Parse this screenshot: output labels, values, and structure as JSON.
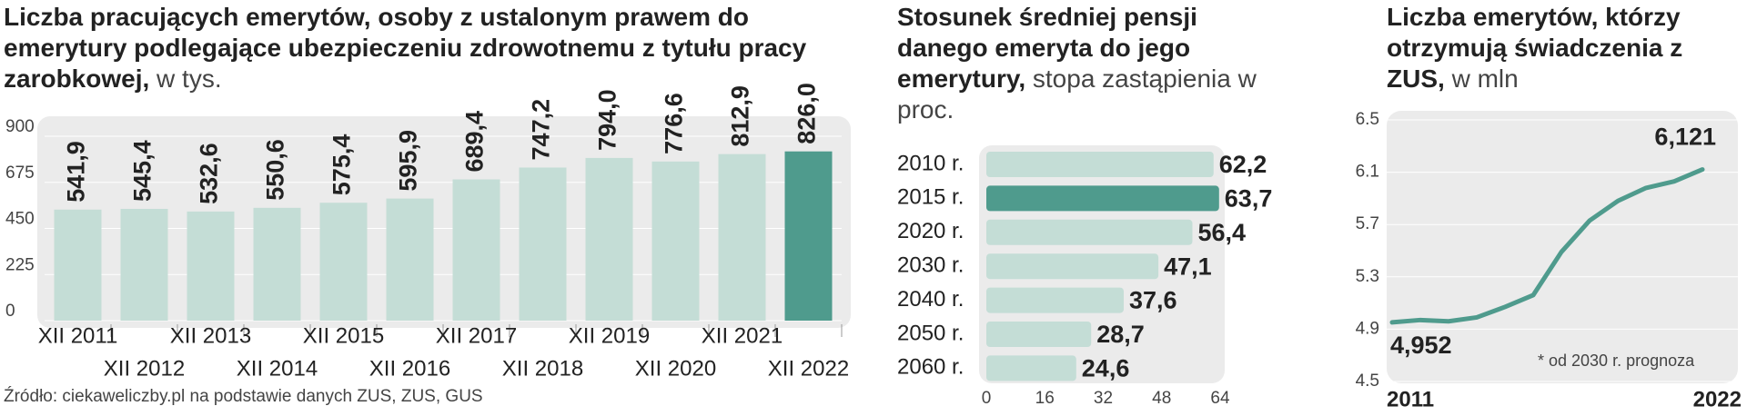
{
  "chart_data": [
    {
      "type": "bar",
      "title": "Liczba pracujących emerytów, osoby z ustalonym prawem do emerytury podlegające ubezpieczeniu zdrowotnemu z tytułu pracy zarobkowej,",
      "unit": "w tys.",
      "categories": [
        "XII 2011",
        "XII 2012",
        "XII 2013",
        "XII 2014",
        "XII 2015",
        "XII 2016",
        "XII 2017",
        "XII 2018",
        "XII 2019",
        "XII 2020",
        "XII 2021",
        "XII 2022"
      ],
      "values": [
        541.9,
        545.4,
        532.6,
        550.6,
        575.4,
        595.9,
        689.4,
        747.2,
        794.0,
        776.6,
        812.9,
        826.0
      ],
      "value_labels": [
        "541,9",
        "545,4",
        "532,6",
        "550,6",
        "575,4",
        "595,9",
        "689,4",
        "747,2",
        "794,0",
        "776,6",
        "812,9",
        "826,0"
      ],
      "colors": [
        "#c4ddd6",
        "#c4ddd6",
        "#c4ddd6",
        "#c4ddd6",
        "#c4ddd6",
        "#c4ddd6",
        "#c4ddd6",
        "#c4ddd6",
        "#c4ddd6",
        "#c4ddd6",
        "#c4ddd6",
        "#4f9b8d"
      ],
      "ylim": [
        0,
        900
      ],
      "yticks": [
        0,
        225,
        450,
        675,
        900
      ],
      "source": "Źródło: ciekaweliczby.pl na podstawie danych ZUS, ZUS, GUS"
    },
    {
      "type": "hbar",
      "title": "Stosunek średniej pensji danego emeryta do jego emerytury,",
      "unit": "stopa zastąpienia w proc.",
      "categories": [
        "2010 r.",
        "2015 r.",
        "2020 r.",
        "2030 r.",
        "2040 r.",
        "2050 r.",
        "2060 r."
      ],
      "values": [
        62.2,
        63.7,
        56.4,
        47.1,
        37.6,
        28.7,
        24.6
      ],
      "value_labels": [
        "62,2",
        "63,7",
        "56,4",
        "47,1",
        "37,6",
        "28,7",
        "24,6"
      ],
      "colors": [
        "#c4ddd6",
        "#4f9b8d",
        "#c4ddd6",
        "#c4ddd6",
        "#c4ddd6",
        "#c4ddd6",
        "#c4ddd6"
      ],
      "xlim": [
        0,
        64
      ],
      "xticks": [
        0,
        16,
        32,
        48,
        64
      ]
    },
    {
      "type": "line",
      "title": "Liczba emerytów, którzy otrzymują świadczenia z ZUS,",
      "unit": "w mln",
      "x": [
        2011,
        2012,
        2013,
        2014,
        2015,
        2016,
        2017,
        2018,
        2019,
        2020,
        2021,
        2022
      ],
      "values": [
        4.952,
        4.97,
        4.96,
        4.99,
        5.07,
        5.16,
        5.49,
        5.73,
        5.88,
        5.98,
        6.03,
        6.121
      ],
      "value_labels": [
        "4,952",
        null,
        null,
        null,
        null,
        null,
        null,
        null,
        null,
        null,
        null,
        "6,121"
      ],
      "color": "#4f9b8d",
      "xlim": [
        2011,
        2022
      ],
      "xticks": [
        2011,
        2022
      ],
      "ylim": [
        4.5,
        6.5
      ],
      "yticks": [
        4.5,
        4.9,
        5.3,
        5.7,
        6.1,
        6.5
      ],
      "annotation": "* od 2030 r. prognoza"
    }
  ]
}
